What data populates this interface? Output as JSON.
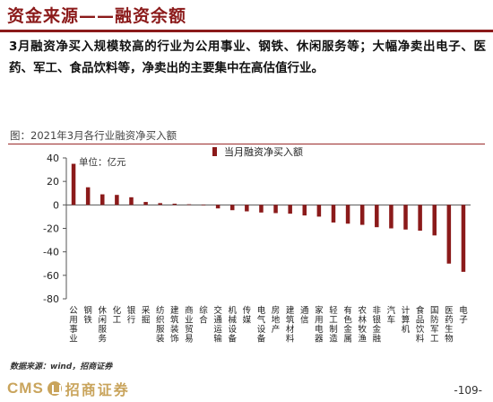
{
  "page": {
    "title": "资金来源——融资余额",
    "summary": "3月融资净买入规模较高的行业为公用事业、钢铁、休闲服务等；大幅净卖出电子、医药、军工、食品饮料等，净卖出的主要集中在高估值行业。",
    "figure_caption": "图：2021年3月各行业融资净买入额",
    "source": "数据来源：wind，招商证券",
    "logo_text": "CMS",
    "logo_cn": "招商证券",
    "page_number": "-109-"
  },
  "chart_data": {
    "type": "bar",
    "unit_note": "单位：亿元",
    "categories": [
      "公用事业",
      "钢铁",
      "休闲服务",
      "化工",
      "银行",
      "采掘",
      "纺织服装",
      "建筑装饰",
      "商业贸易",
      "综合",
      "交通运输",
      "机械设备",
      "传媒",
      "电气设备",
      "房地产",
      "建筑材料",
      "通信",
      "家用电器",
      "轻工制造",
      "有色金属",
      "农林牧渔",
      "非银金融",
      "汽车",
      "计算机",
      "食品饮料",
      "国防军工",
      "医药生物",
      "电子"
    ],
    "series": [
      {
        "name": "当月融资净买入额",
        "values": [
          35,
          15,
          9,
          8.5,
          6.5,
          2.5,
          1.5,
          1,
          0.5,
          0,
          -3,
          -4.5,
          -5.5,
          -6.5,
          -7,
          -7.5,
          -9,
          -10,
          -15,
          -16,
          -17,
          -19,
          -20,
          -21,
          -22,
          -26,
          -50,
          -57
        ]
      }
    ],
    "ylim": [
      -80,
      40
    ],
    "yticks": [
      40,
      20,
      0,
      -20,
      -40,
      -60,
      -80
    ],
    "color": "#8b1a1a",
    "legend_position": "top-center",
    "grid": false
  }
}
